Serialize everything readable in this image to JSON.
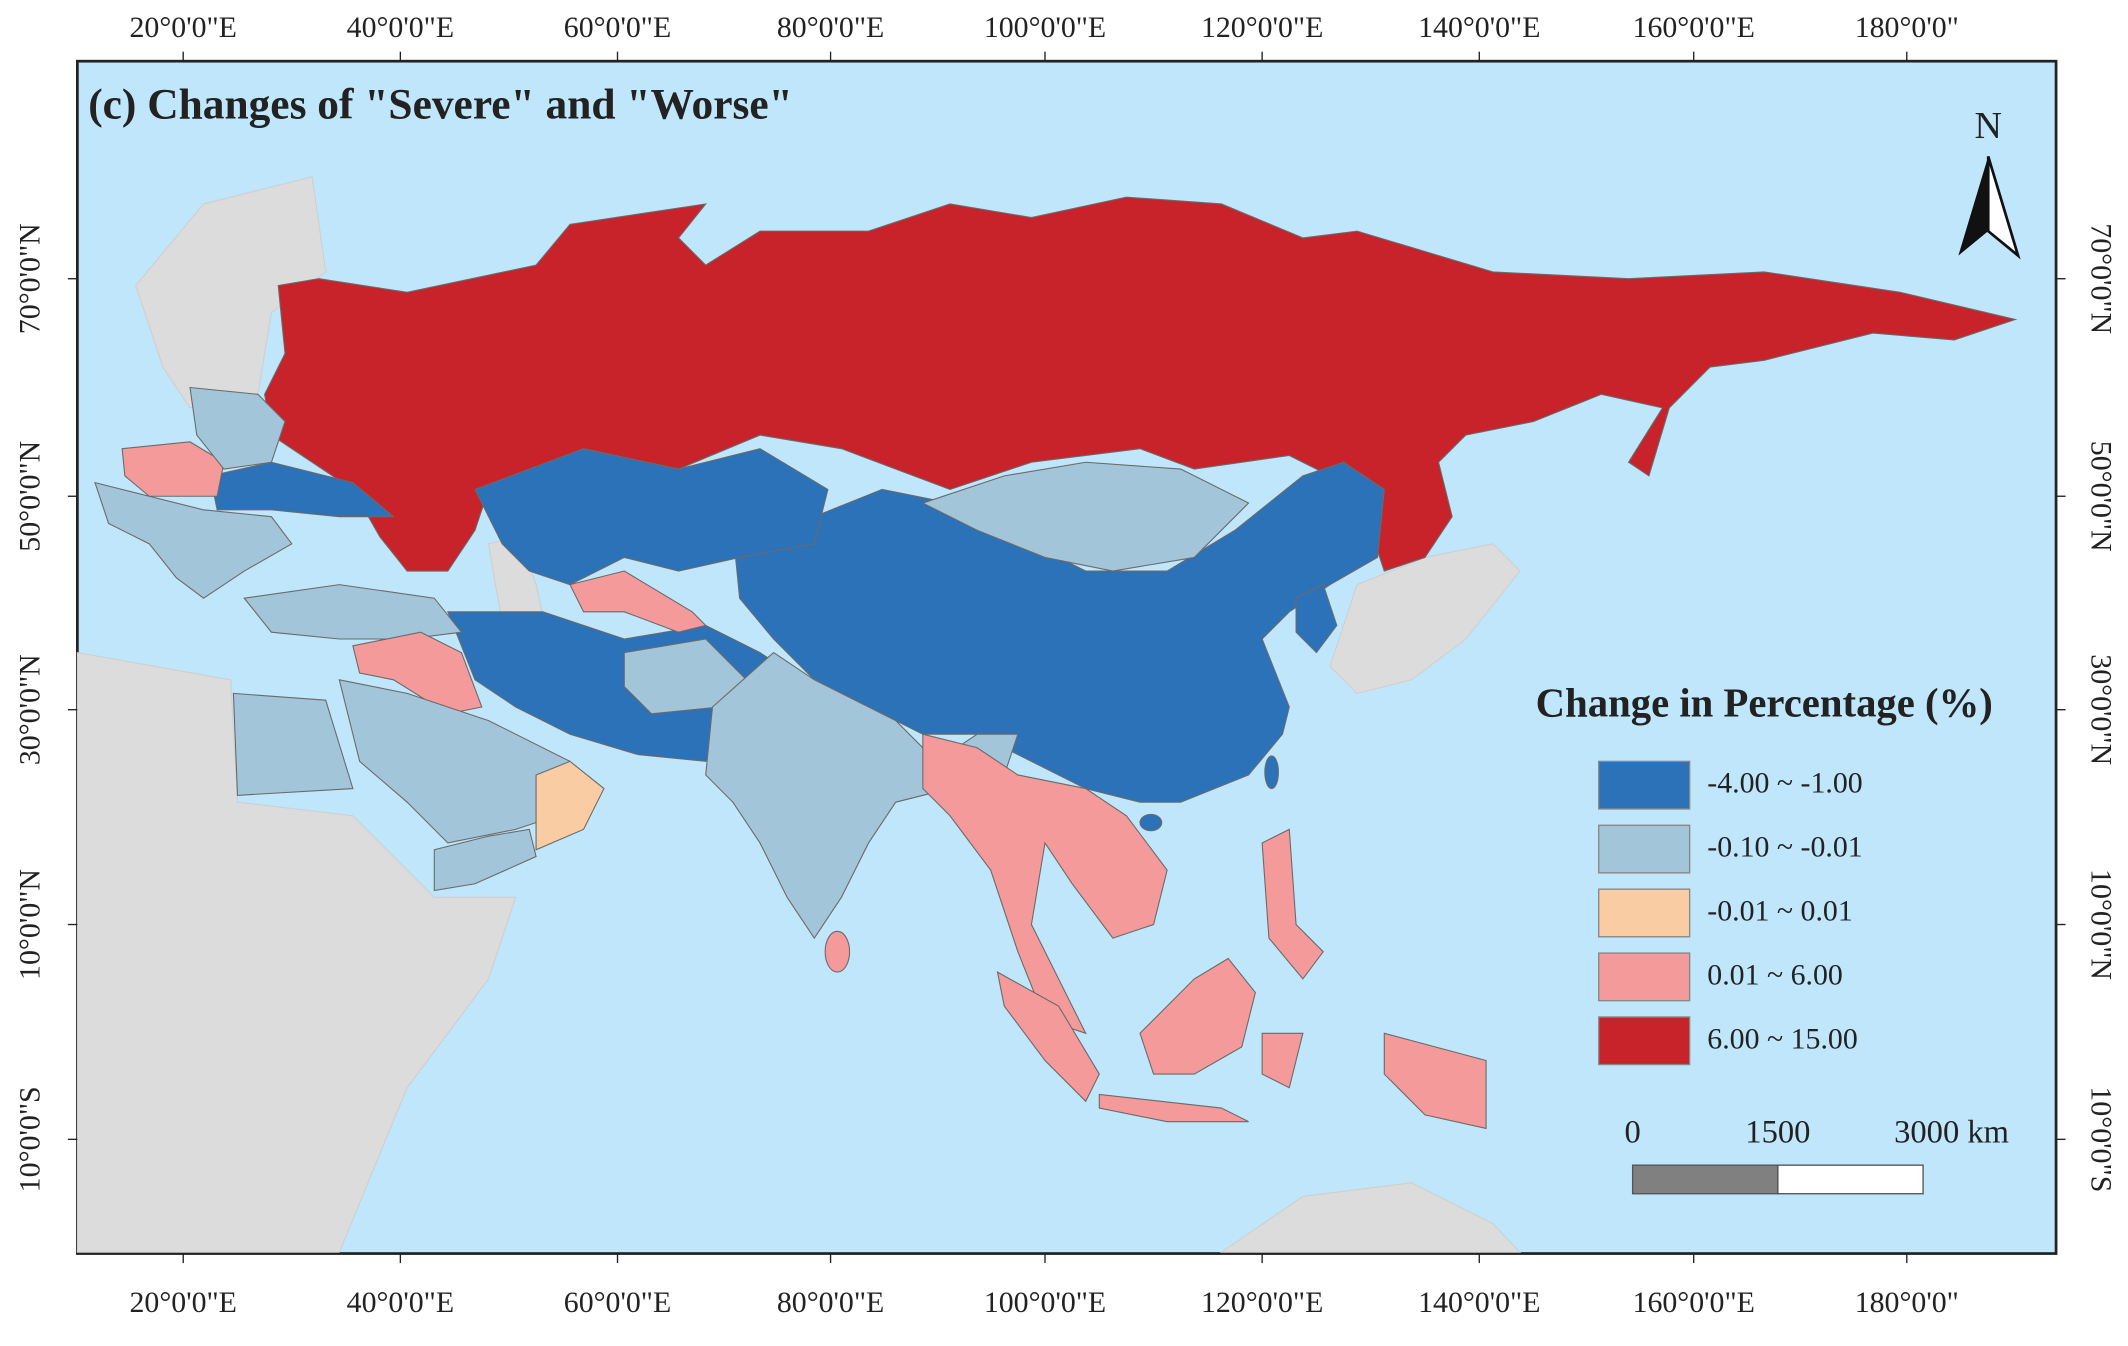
{
  "title": "(c) Changes of \"Severe\" and \"Worse\"",
  "north_label": "N",
  "graticule": {
    "top": [
      "20°0'0\"E",
      "40°0'0\"E",
      "60°0'0\"E",
      "80°0'0\"E",
      "100°0'0\"E",
      "120°0'0\"E",
      "140°0'0\"E",
      "160°0'0\"E",
      "180°0'0\""
    ],
    "bottom": [
      "20°0'0\"E",
      "40°0'0\"E",
      "60°0'0\"E",
      "80°0'0\"E",
      "100°0'0\"E",
      "120°0'0\"E",
      "140°0'0\"E",
      "160°0'0\"E",
      "180°0'0\""
    ],
    "left": [
      "70°0'0\"N",
      "50°0'0\"N",
      "30°0'0\"N",
      "10°0'0\"N",
      "10°0'0\"S"
    ],
    "right": [
      "70°0'0\"N",
      "50°0'0\"N",
      "30°0'0\"N",
      "10°0'0\"N",
      "10°0'0\"S"
    ]
  },
  "legend": {
    "title": "Change in Percentage (%)",
    "items": [
      {
        "label": "-4.00 ~ -1.00",
        "color": "#2b72b8"
      },
      {
        "label": "-0.10 ~ -0.01",
        "color": "#a2c5d9"
      },
      {
        "label": "-0.01 ~ 0.01",
        "color": "#f9cca3"
      },
      {
        "label": "0.01 ~ 6.00",
        "color": "#f49a9a"
      },
      {
        "label": "6.00 ~ 15.00",
        "color": "#c8222a"
      }
    ]
  },
  "scale_bar": {
    "labels": [
      "0",
      "1500",
      "3000 km"
    ]
  }
}
